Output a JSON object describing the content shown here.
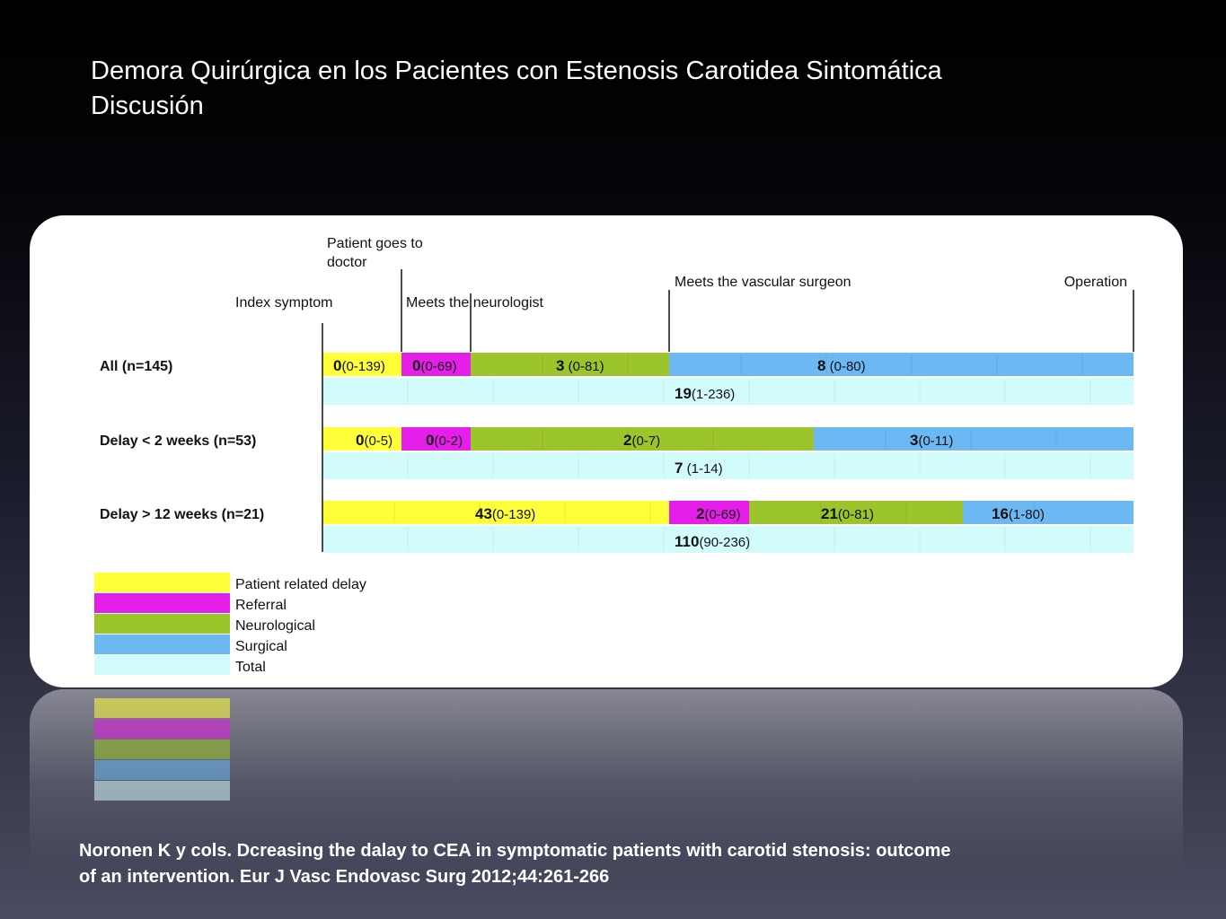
{
  "slide": {
    "title_line1": "Demora Quirúrgica en los Pacientes con Estenosis Carotidea Sintomática",
    "title_line2": "Discusión",
    "citation_line1": "Noronen K y cols. Dcreasing the dalay to CEA in symptomatic patients with carotid stenosis: outcome",
    "citation_line2": "of an intervention. Eur J Vasc Endovasc Surg 2012;44:261-266"
  },
  "chart_data": {
    "type": "bar",
    "stacked": true,
    "unit": "days (median, range)",
    "milestones": [
      "Index symptom",
      "Patient goes to doctor",
      "Meets the neurologist",
      "Meets the vascular surgeon",
      "Operation"
    ],
    "legend": [
      {
        "key": "patient",
        "label": "Patient related delay",
        "color": "#ffff3a"
      },
      {
        "key": "referral",
        "label": "Referral",
        "color": "#e51ee9"
      },
      {
        "key": "neuro",
        "label": "Neurological",
        "color": "#9cc42b"
      },
      {
        "key": "surgical",
        "label": "Surgical",
        "color": "#6cb8f2"
      },
      {
        "key": "total",
        "label": "Total",
        "color": "#d2fbfb"
      }
    ],
    "rows": [
      {
        "label": "All (n=145)",
        "segments": [
          {
            "key": "patient",
            "median": "0",
            "range": "(0-139)"
          },
          {
            "key": "referral",
            "median": "0",
            "range": "(0-69)"
          },
          {
            "key": "neuro",
            "median": "3",
            "range": " (0-81)"
          },
          {
            "key": "surgical",
            "median": "8",
            "range": " (0-80)"
          }
        ],
        "total": {
          "median": "19",
          "range": "(1-236)"
        }
      },
      {
        "label": "Delay < 2 weeks (n=53)",
        "segments": [
          {
            "key": "patient",
            "median": "0",
            "range": "(0-5)"
          },
          {
            "key": "referral",
            "median": "0",
            "range": "(0-2)"
          },
          {
            "key": "neuro",
            "median": "2",
            "range": "(0-7)"
          },
          {
            "key": "surgical",
            "median": "3",
            "range": "(0-11)"
          }
        ],
        "total": {
          "median": "7",
          "range": " (1-14)"
        }
      },
      {
        "label": "Delay > 12 weeks (n=21)",
        "segments": [
          {
            "key": "patient",
            "median": "43",
            "range": "(0-139)"
          },
          {
            "key": "referral",
            "median": "2",
            "range": "(0-69)"
          },
          {
            "key": "neuro",
            "median": "21",
            "range": "(0-81)"
          },
          {
            "key": "surgical",
            "median": "16",
            "range": "(1-80)"
          }
        ],
        "total": {
          "median": "110",
          "range": "(90-236)"
        }
      }
    ]
  }
}
